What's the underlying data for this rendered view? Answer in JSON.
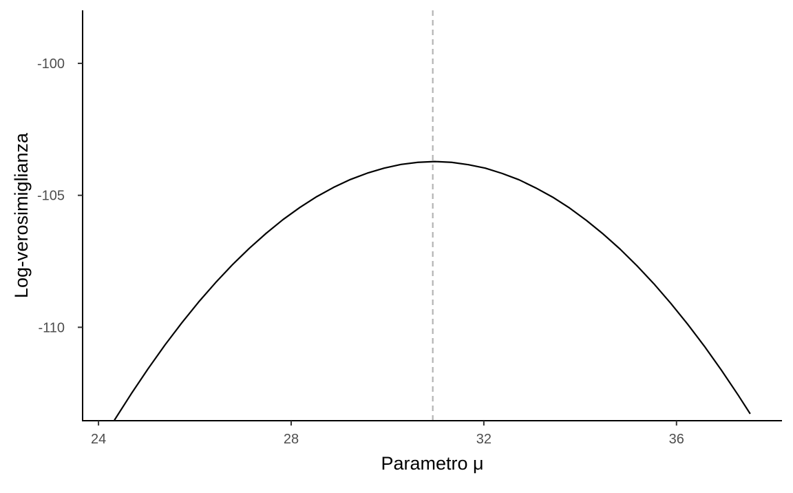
{
  "chart_data": {
    "type": "line",
    "title": "",
    "xlabel": "Parametro μ",
    "ylabel": "Log-verosimiglianza",
    "xlim": [
      23.67,
      38.19
    ],
    "ylim": [
      -113.54,
      -97.99
    ],
    "x_ticks": [
      24,
      28,
      32,
      36
    ],
    "x_tick_labels": [
      "24",
      "28",
      "32",
      "36"
    ],
    "y_ticks": [
      -100,
      -105,
      -110
    ],
    "y_tick_labels": [
      "-100",
      "-105",
      "-110"
    ],
    "grid": false,
    "legend": "none",
    "series": [
      {
        "x": [
          24.33,
          24.68,
          25.03,
          25.38,
          25.73,
          26.08,
          26.43,
          26.78,
          27.13,
          27.48,
          27.83,
          28.18,
          28.53,
          28.88,
          29.23,
          29.58,
          29.93,
          30.28,
          30.63,
          30.98,
          31.33,
          31.68,
          32.03,
          32.38,
          32.73,
          33.08,
          33.43,
          33.78,
          34.13,
          34.48,
          34.83,
          35.18,
          35.53,
          35.88,
          36.23,
          36.58,
          36.93,
          37.28,
          37.53
        ],
        "y": [
          -113.52,
          -112.52,
          -111.57,
          -110.67,
          -109.83,
          -109.04,
          -108.31,
          -107.63,
          -107.01,
          -106.44,
          -105.92,
          -105.46,
          -105.05,
          -104.7,
          -104.4,
          -104.16,
          -103.97,
          -103.83,
          -103.75,
          -103.72,
          -103.75,
          -103.84,
          -103.97,
          -104.17,
          -104.41,
          -104.72,
          -105.07,
          -105.48,
          -105.95,
          -106.47,
          -107.04,
          -107.67,
          -108.35,
          -109.09,
          -109.88,
          -110.72,
          -111.62,
          -112.57,
          -113.28
        ],
        "color": "#000000"
      }
    ],
    "reference_lines": [
      {
        "orientation": "vertical",
        "x": 30.94,
        "style": "dashed",
        "color": "#b3b3b3"
      }
    ]
  }
}
